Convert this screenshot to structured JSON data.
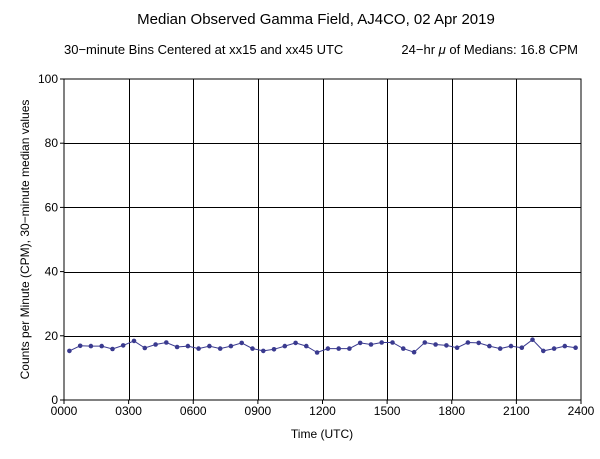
{
  "chart_data": {
    "type": "line",
    "title": "Median Observed Gamma Field, AJ4CO, 02 Apr 2019",
    "subtitle_left": "30−minute Bins Centered at xx15 and xx45 UTC",
    "subtitle_right_prefix": "24−hr ",
    "subtitle_right_mu": "μ",
    "subtitle_right_suffix": " of Medians: 16.8 CPM",
    "xlabel": "Time (UTC)",
    "ylabel": "Counts per Minute (CPM), 30−minute median values",
    "xlim": [
      0,
      24
    ],
    "ylim": [
      0,
      100
    ],
    "x_ticks": [
      0,
      3,
      6,
      9,
      12,
      15,
      18,
      21,
      24
    ],
    "x_tick_labels": [
      "0000",
      "0300",
      "0600",
      "0900",
      "1200",
      "1500",
      "1800",
      "2100",
      "2400"
    ],
    "y_ticks": [
      0,
      20,
      40,
      60,
      80,
      100
    ],
    "y_tick_labels": [
      "0",
      "20",
      "40",
      "60",
      "80",
      "100"
    ],
    "grid": true,
    "series_color": "#3a3a8f",
    "x": [
      0.25,
      0.75,
      1.25,
      1.75,
      2.25,
      2.75,
      3.25,
      3.75,
      4.25,
      4.75,
      5.25,
      5.75,
      6.25,
      6.75,
      7.25,
      7.75,
      8.25,
      8.75,
      9.25,
      9.75,
      10.25,
      10.75,
      11.25,
      11.75,
      12.25,
      12.75,
      13.25,
      13.75,
      14.25,
      14.75,
      15.25,
      15.75,
      16.25,
      16.75,
      17.25,
      17.75,
      18.25,
      18.75,
      19.25,
      19.75,
      20.25,
      20.75,
      21.25,
      21.75,
      22.25,
      22.75,
      23.25,
      23.75
    ],
    "series": [
      {
        "values": [
          15.3,
          16.9,
          16.8,
          16.8,
          15.9,
          17.0,
          18.4,
          16.2,
          17.3,
          17.9,
          16.5,
          16.8,
          16.0,
          16.8,
          16.0,
          16.8,
          17.8,
          16.0,
          15.3,
          15.8,
          16.8,
          17.8,
          16.8,
          14.8,
          16.0,
          16.0,
          16.0,
          17.8,
          17.3,
          17.9,
          17.9,
          16.0,
          14.9,
          17.9,
          17.3,
          17.0,
          16.3,
          17.9,
          17.8,
          16.8,
          16.0,
          16.8,
          16.3,
          18.8,
          15.3,
          16.0,
          16.8,
          16.3
        ]
      }
    ]
  }
}
